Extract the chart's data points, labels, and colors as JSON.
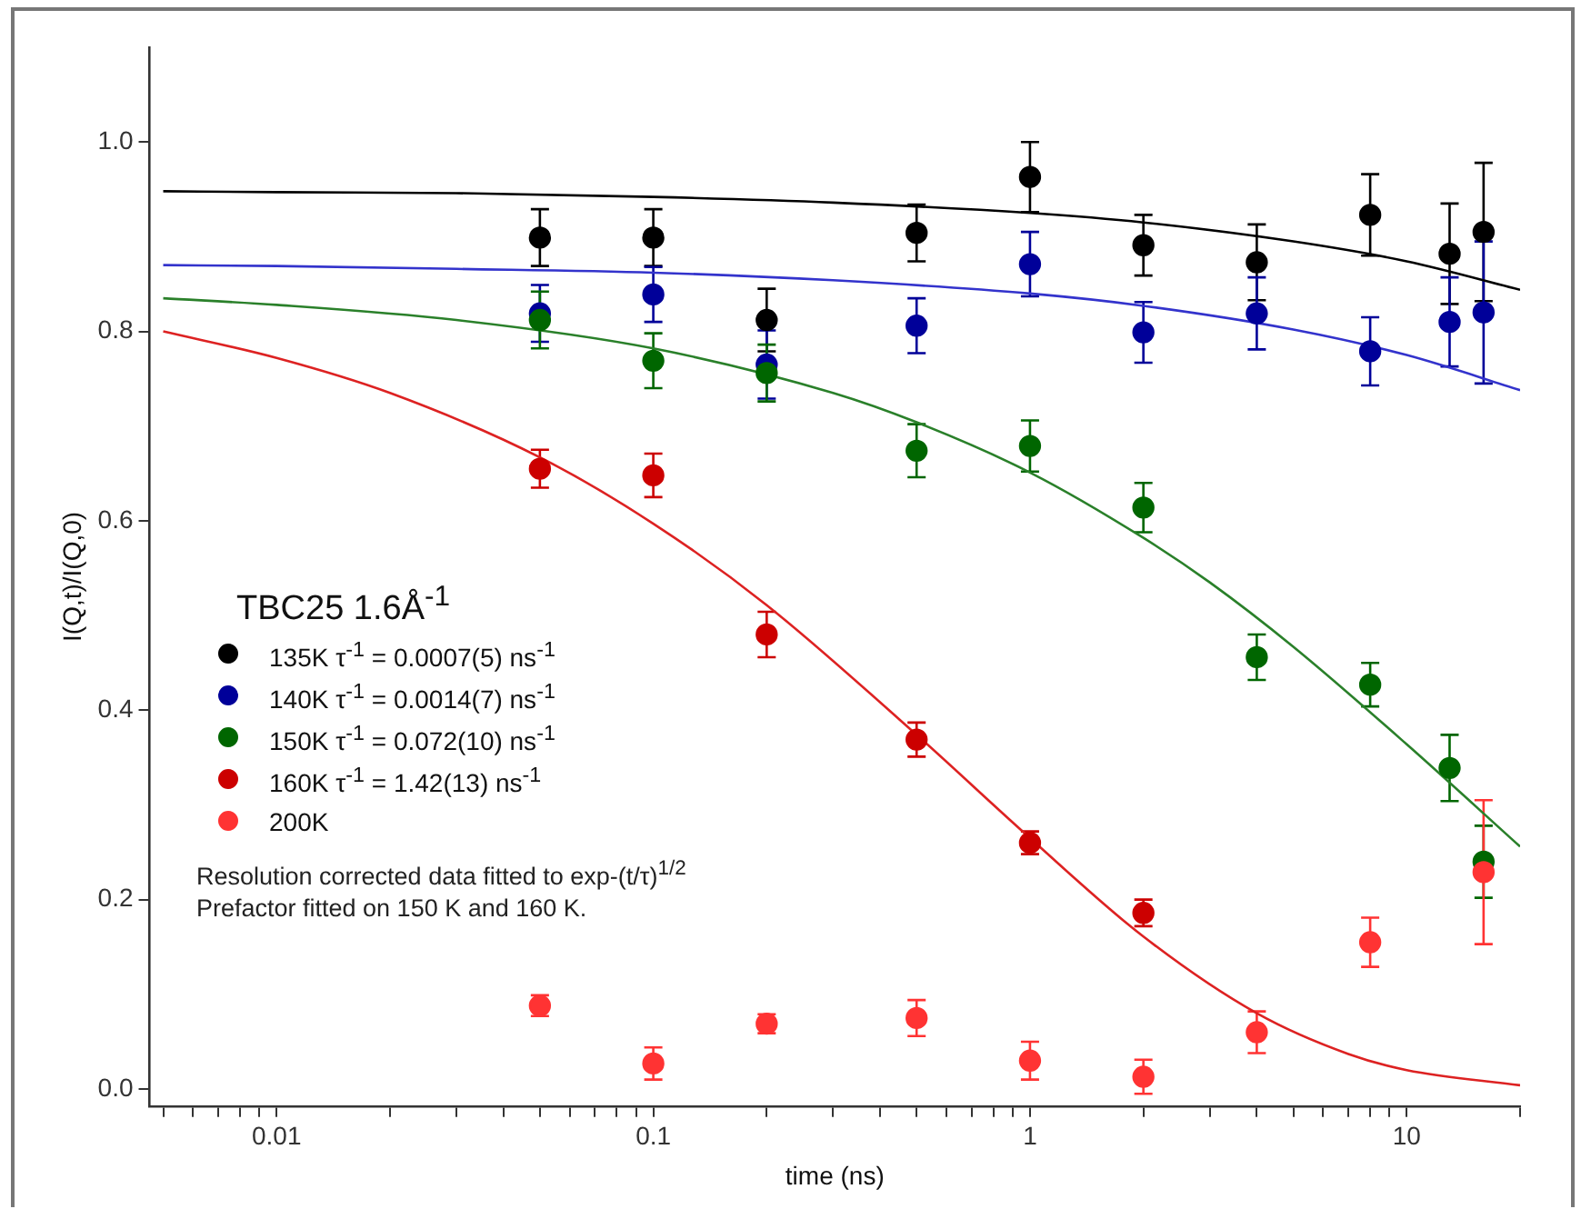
{
  "chart_data": {
    "type": "scatter",
    "xlabel": "time (ns)",
    "ylabel": "I(Q,t)/I(Q,0)",
    "log": "x",
    "xlim": [
      0.0046,
      20
    ],
    "xticks": [
      {
        "value": 0.005,
        "label": null
      },
      {
        "value": 0.006,
        "label": null
      },
      {
        "value": 0.007,
        "label": null
      },
      {
        "value": 0.008,
        "label": null
      },
      {
        "value": 0.009,
        "label": null
      },
      0.01,
      {
        "value": 0.02,
        "label": null
      },
      {
        "value": 0.03,
        "label": null
      },
      {
        "value": 0.04,
        "label": null
      },
      {
        "value": 0.05,
        "label": null
      },
      {
        "value": 0.06,
        "label": null
      },
      {
        "value": 0.07,
        "label": null
      },
      {
        "value": 0.08,
        "label": null
      },
      {
        "value": 0.09,
        "label": null
      },
      0.1,
      {
        "value": 0.2,
        "label": null
      },
      {
        "value": 0.3,
        "label": null
      },
      {
        "value": 0.4,
        "label": null
      },
      {
        "value": 0.5,
        "label": null
      },
      {
        "value": 0.6,
        "label": null
      },
      {
        "value": 0.7,
        "label": null
      },
      {
        "value": 0.8,
        "label": null
      },
      {
        "value": 0.9,
        "label": null
      },
      1,
      {
        "value": 2,
        "label": null
      },
      {
        "value": 3,
        "label": null
      },
      {
        "value": 4,
        "label": null
      },
      {
        "value": 5,
        "label": null
      },
      {
        "value": 6,
        "label": null
      },
      {
        "value": 7,
        "label": null
      },
      {
        "value": 8,
        "label": null
      },
      {
        "value": 9,
        "label": null
      },
      10,
      {
        "value": 20,
        "label": null
      }
    ],
    "ylim": [
      -0.018,
      1.1
    ],
    "yticks": [
      {
        "value": 0,
        "label": "0.0"
      },
      0.2,
      0.4,
      0.6,
      0.8,
      {
        "value": 1,
        "label": "1.0"
      }
    ],
    "legend": "left",
    "legend_title": "TBC25 1.6Å$^{-1}$",
    "annotations": [
      "Resolution corrected data fitted to exp-(t/τ)$^{1/2}$",
      "Prefactor fitted on 150 K and 160 K."
    ],
    "series": [
      {
        "type": "line",
        "marker": "none",
        "color": "#000000",
        "x": [
          0.005,
          0.01,
          0.03,
          0.1,
          0.3,
          1,
          2,
          5,
          10,
          20
        ],
        "values": [
          0.948,
          0.947,
          0.946,
          0.942,
          0.936,
          0.925,
          0.915,
          0.895,
          0.874,
          0.844
        ]
      },
      {
        "type": "line",
        "marker": "none",
        "color": "#3333cc",
        "x": [
          0.005,
          0.01,
          0.03,
          0.1,
          0.3,
          1,
          2,
          5,
          10,
          20
        ],
        "values": [
          0.87,
          0.869,
          0.866,
          0.862,
          0.854,
          0.84,
          0.827,
          0.802,
          0.775,
          0.738
        ]
      },
      {
        "type": "line",
        "marker": "none",
        "color": "#2a802a",
        "x": [
          0.005,
          0.01,
          0.03,
          0.1,
          0.3,
          0.5,
          1,
          2,
          3,
          5,
          10,
          20
        ],
        "values": [
          0.835,
          0.828,
          0.812,
          0.782,
          0.735,
          0.704,
          0.651,
          0.582,
          0.535,
          0.467,
          0.364,
          0.256
        ]
      },
      {
        "type": "line",
        "marker": "none",
        "color": "#dd2222",
        "x": [
          0.005,
          0.01,
          0.02,
          0.05,
          0.1,
          0.2,
          0.5,
          1,
          2,
          4,
          7,
          10,
          20
        ],
        "values": [
          0.8,
          0.772,
          0.735,
          0.667,
          0.597,
          0.511,
          0.374,
          0.265,
          0.161,
          0.08,
          0.037,
          0.02,
          0.004
        ]
      },
      {
        "marker": "circle",
        "name": "135K τ$^{-1}$ = 0.0007(5) ns$^{-1}$",
        "color": "#000000",
        "x": [
          0.05,
          0.1,
          0.2,
          0.5,
          1,
          2,
          4,
          8,
          13,
          16
        ],
        "values": [
          0.899,
          0.899,
          0.812,
          0.904,
          0.963,
          0.891,
          0.873,
          0.923,
          0.882,
          0.905
        ],
        "errors": [
          0.03,
          0.03,
          0.033,
          0.03,
          0.037,
          0.032,
          0.04,
          0.043,
          0.053,
          0.073
        ]
      },
      {
        "marker": "circle",
        "name": "140K τ$^{-1}$ = 0.0014(7) ns$^{-1}$",
        "color": "#000099",
        "x": [
          0.05,
          0.1,
          0.2,
          0.5,
          1,
          2,
          4,
          8,
          13,
          16
        ],
        "values": [
          0.819,
          0.839,
          0.765,
          0.806,
          0.871,
          0.799,
          0.819,
          0.779,
          0.81,
          0.82
        ],
        "errors": [
          0.03,
          0.029,
          0.036,
          0.029,
          0.034,
          0.032,
          0.038,
          0.036,
          0.047,
          0.075
        ]
      },
      {
        "marker": "circle",
        "name": "150K τ$^{-1}$ = 0.072(10) ns$^{-1}$",
        "color": "#006600",
        "x": [
          0.05,
          0.1,
          0.2,
          0.5,
          1,
          2,
          4,
          8,
          13,
          16
        ],
        "values": [
          0.812,
          0.769,
          0.756,
          0.674,
          0.679,
          0.614,
          0.456,
          0.427,
          0.339,
          0.24
        ],
        "errors": [
          0.03,
          0.029,
          0.03,
          0.028,
          0.027,
          0.026,
          0.024,
          0.023,
          0.035,
          0.038
        ]
      },
      {
        "marker": "circle",
        "name": "160K τ$^{-1}$ = 1.42(13) ns$^{-1}$",
        "color": "#cc0000",
        "x": [
          0.05,
          0.1,
          0.2,
          0.5,
          1,
          2
        ],
        "values": [
          0.655,
          0.648,
          0.48,
          0.369,
          0.26,
          0.186
        ],
        "errors": [
          0.02,
          0.023,
          0.024,
          0.018,
          0.012,
          0.014
        ]
      },
      {
        "name": "200K",
        "color": "#ff3333",
        "x": [
          0.05,
          0.1,
          0.2,
          0.5,
          1,
          2,
          4,
          8,
          16
        ],
        "values": [
          0.088,
          0.027,
          0.069,
          0.075,
          0.03,
          0.013,
          0.06,
          0.155,
          0.229
        ],
        "errors": [
          0.011,
          0.017,
          0.01,
          0.019,
          0.02,
          0.018,
          0.022,
          0.026,
          0.076
        ]
      }
    ]
  }
}
